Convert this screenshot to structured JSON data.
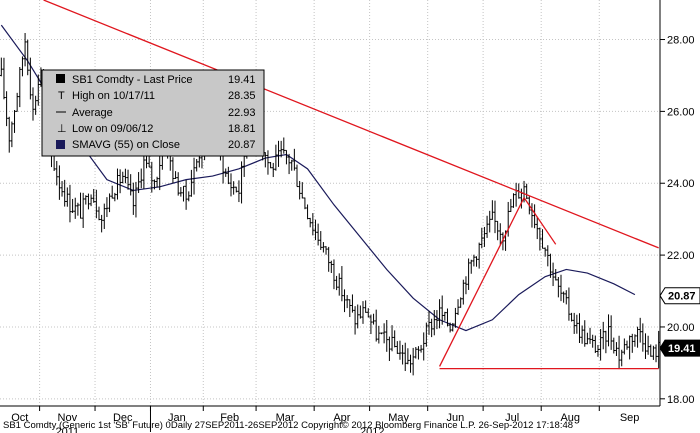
{
  "chart_data": {
    "type": "candlestick",
    "legend": {
      "title": "SB1 Comdty - Last Price",
      "rows": [
        {
          "label": "High on 10/17/11",
          "value": "28.35"
        },
        {
          "label": "Average",
          "value": "22.93"
        },
        {
          "label": "Low on 09/06/12",
          "value": "18.81"
        },
        {
          "label": "SMAVG (55) on Close",
          "value": "20.87"
        }
      ],
      "last_value": "19.41"
    },
    "y_axis": {
      "ylim": [
        17.8,
        29.1
      ],
      "ticks": [
        "18.00",
        "20.00",
        "22.00",
        "24.00",
        "26.00",
        "28.00"
      ]
    },
    "x_axis": {
      "months": [
        "Oct",
        "Nov",
        "Dec",
        "Jan",
        "Feb",
        "Mar",
        "Apr",
        "May",
        "Jun",
        "Jul",
        "Aug",
        "Sep"
      ],
      "years": [
        "2011",
        "2012"
      ]
    },
    "badges": [
      {
        "value": "20.87",
        "style": "smavg"
      },
      {
        "value": "19.41",
        "style": "last"
      }
    ],
    "price_path": [
      [
        0,
        27.0
      ],
      [
        3,
        25.3
      ],
      [
        6,
        26.5
      ],
      [
        9,
        28.0
      ],
      [
        12,
        26.0
      ],
      [
        15,
        27.2
      ],
      [
        18,
        25.0
      ],
      [
        22,
        24.0
      ],
      [
        26,
        23.4
      ],
      [
        30,
        23.2
      ],
      [
        34,
        23.8
      ],
      [
        38,
        23.0
      ],
      [
        42,
        23.8
      ],
      [
        46,
        24.2
      ],
      [
        50,
        23.4
      ],
      [
        54,
        24.6
      ],
      [
        58,
        24.0
      ],
      [
        62,
        25.2
      ],
      [
        66,
        24.0
      ],
      [
        70,
        23.6
      ],
      [
        74,
        24.6
      ],
      [
        78,
        25.6
      ],
      [
        82,
        25.0
      ],
      [
        86,
        24.0
      ],
      [
        90,
        23.8
      ],
      [
        94,
        25.8
      ],
      [
        98,
        25.2
      ],
      [
        102,
        24.4
      ],
      [
        106,
        24.8
      ],
      [
        110,
        24.6
      ],
      [
        114,
        23.6
      ],
      [
        118,
        22.8
      ],
      [
        122,
        22.2
      ],
      [
        126,
        21.5
      ],
      [
        130,
        20.8
      ],
      [
        134,
        20.2
      ],
      [
        138,
        20.5
      ],
      [
        142,
        19.8
      ],
      [
        146,
        19.6
      ],
      [
        150,
        19.4
      ],
      [
        154,
        19.0
      ],
      [
        158,
        19.3
      ],
      [
        162,
        20.0
      ],
      [
        166,
        20.4
      ],
      [
        170,
        20.0
      ],
      [
        174,
        21.0
      ],
      [
        178,
        21.8
      ],
      [
        182,
        22.4
      ],
      [
        186,
        23.0
      ],
      [
        190,
        22.6
      ],
      [
        194,
        23.6
      ],
      [
        198,
        23.9
      ],
      [
        202,
        23.0
      ],
      [
        206,
        22.2
      ],
      [
        210,
        21.2
      ],
      [
        214,
        20.6
      ],
      [
        218,
        20.0
      ],
      [
        222,
        19.6
      ],
      [
        226,
        19.4
      ],
      [
        230,
        19.9
      ],
      [
        234,
        19.2
      ],
      [
        238,
        19.7
      ],
      [
        242,
        19.9
      ],
      [
        246,
        19.2
      ],
      [
        249,
        19.41
      ]
    ],
    "smavg_path": [
      [
        0,
        28.4
      ],
      [
        10,
        27.4
      ],
      [
        20,
        26.2
      ],
      [
        30,
        25.1
      ],
      [
        40,
        24.1
      ],
      [
        50,
        23.8
      ],
      [
        60,
        23.9
      ],
      [
        70,
        24.1
      ],
      [
        80,
        24.2
      ],
      [
        90,
        24.4
      ],
      [
        100,
        24.7
      ],
      [
        108,
        24.8
      ],
      [
        116,
        24.4
      ],
      [
        126,
        23.4
      ],
      [
        136,
        22.5
      ],
      [
        146,
        21.6
      ],
      [
        156,
        20.8
      ],
      [
        166,
        20.2
      ],
      [
        176,
        19.9
      ],
      [
        186,
        20.2
      ],
      [
        196,
        20.9
      ],
      [
        206,
        21.4
      ],
      [
        214,
        21.6
      ],
      [
        222,
        21.5
      ],
      [
        232,
        21.2
      ],
      [
        240,
        20.9
      ]
    ],
    "trendlines": [
      {
        "name": "down-resistance",
        "points": [
          [
            16,
            29.1
          ],
          [
            249,
            22.2
          ]
        ]
      },
      {
        "name": "support",
        "points": [
          [
            166,
            18.84
          ],
          [
            249,
            18.84
          ]
        ]
      },
      {
        "name": "rise-left",
        "points": [
          [
            166,
            18.9
          ],
          [
            198,
            23.6
          ]
        ]
      },
      {
        "name": "rise-right",
        "points": [
          [
            198,
            23.6
          ],
          [
            210,
            22.3
          ]
        ]
      }
    ],
    "colors": {
      "price": "#000000",
      "smavg": "#1a1a5a",
      "trendline": "#e0161e",
      "legend_bg": "#c8c8c8",
      "legend_border": "#000000"
    }
  },
  "footer": "SB1 Comdty (Generic 1st 'SB' Future)  0Daily 27SEP2011-26SEP2012 Copyright© 2012 Bloomberg Finance L.P.   26-Sep-2012 17:18:48"
}
